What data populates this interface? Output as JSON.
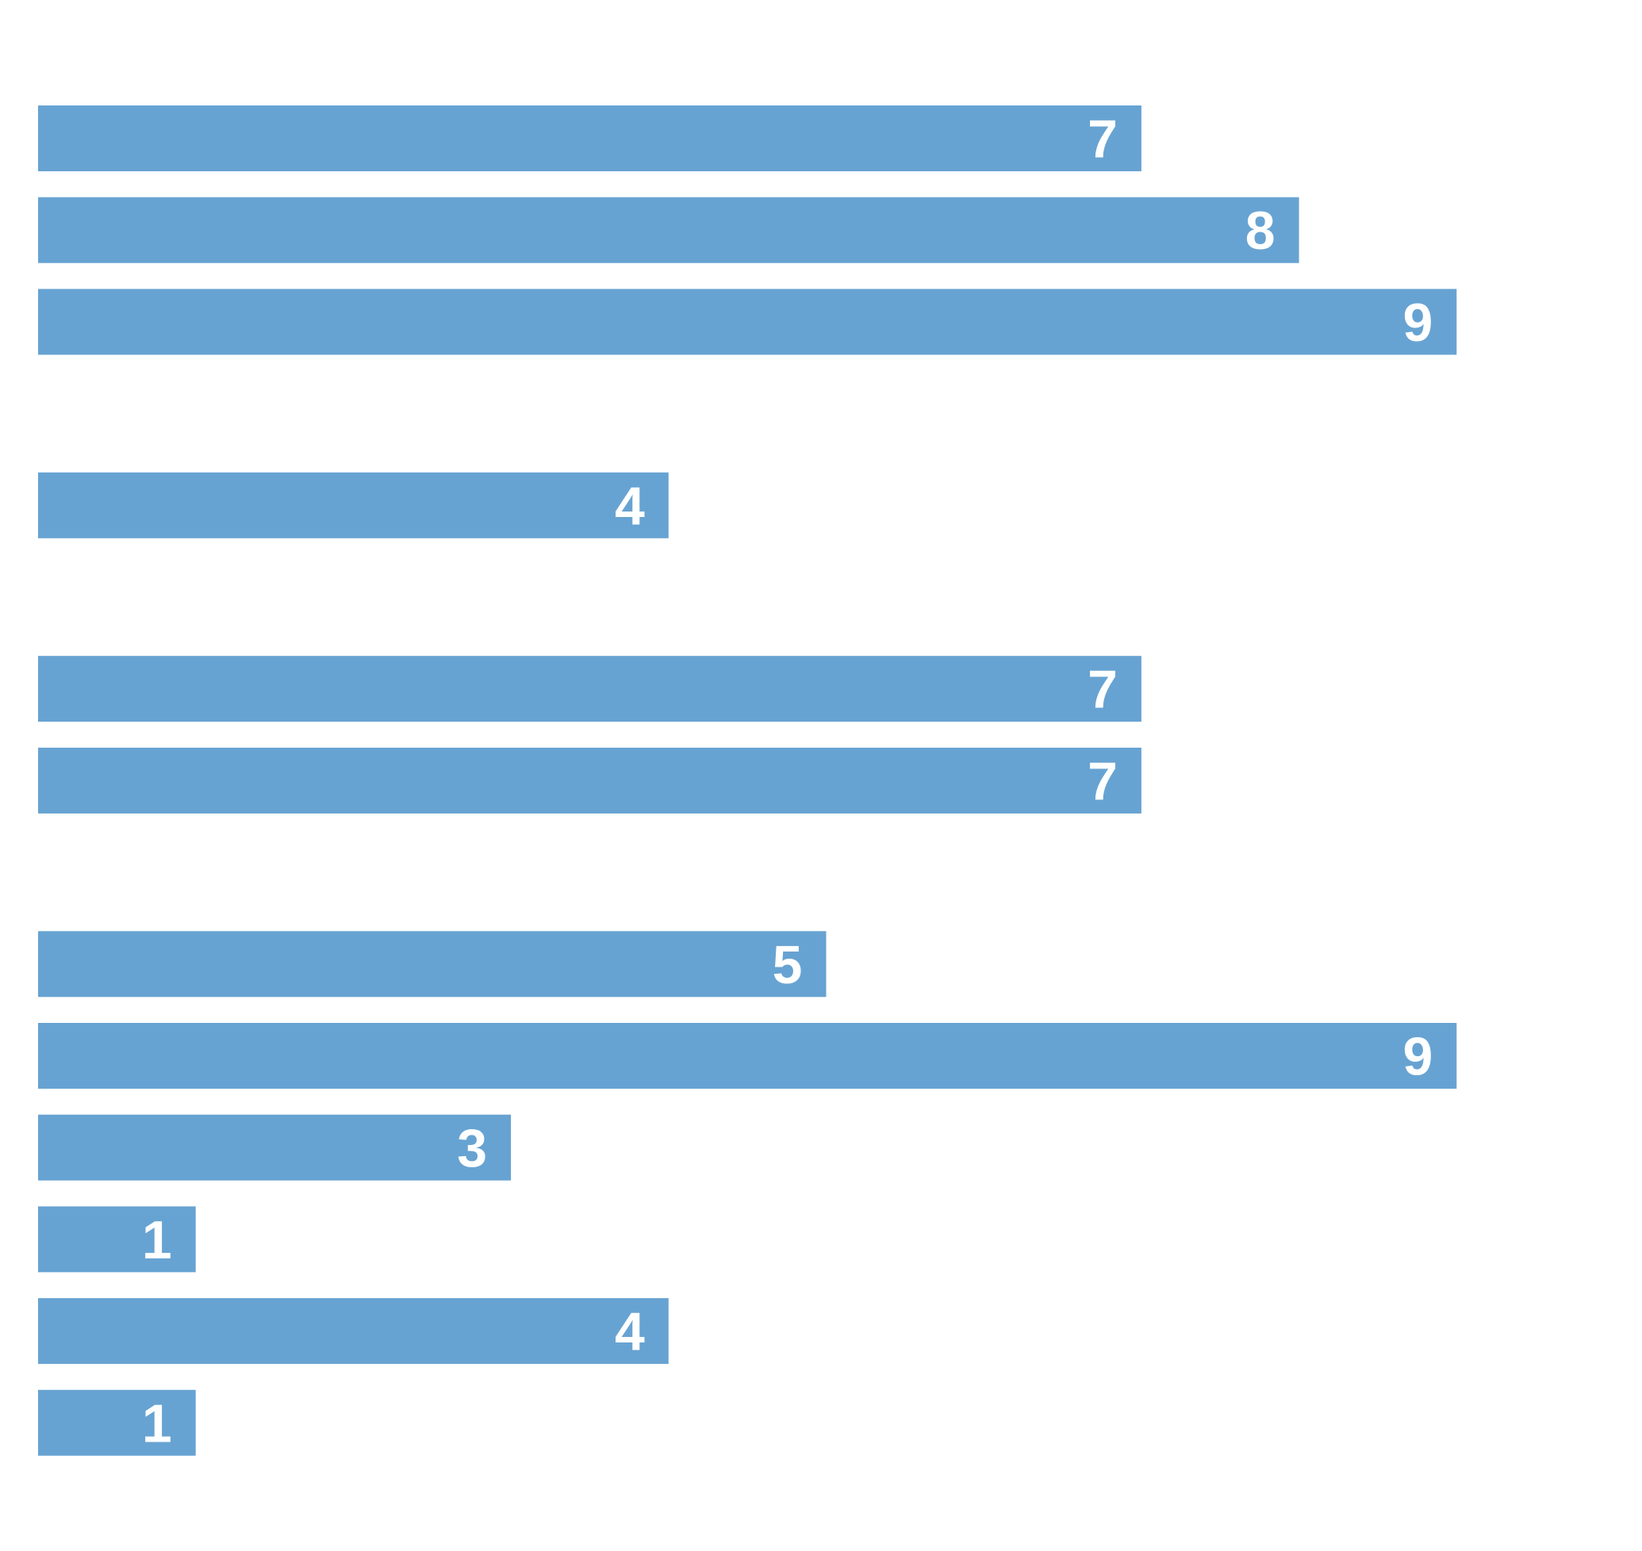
{
  "chart_data": {
    "type": "bar",
    "orientation": "horizontal",
    "title": "",
    "xlabel": "",
    "ylabel": "",
    "xlim": [
      0,
      9
    ],
    "grid": false,
    "legend": "none",
    "colors": {
      "bar": "#67a3d2",
      "label": "#ffffff"
    },
    "groups": [
      {
        "values": [
          7,
          8,
          9
        ]
      },
      {
        "values": [
          4
        ]
      },
      {
        "values": [
          7,
          7
        ]
      },
      {
        "values": [
          5,
          9,
          3,
          1,
          4,
          1
        ]
      }
    ]
  }
}
